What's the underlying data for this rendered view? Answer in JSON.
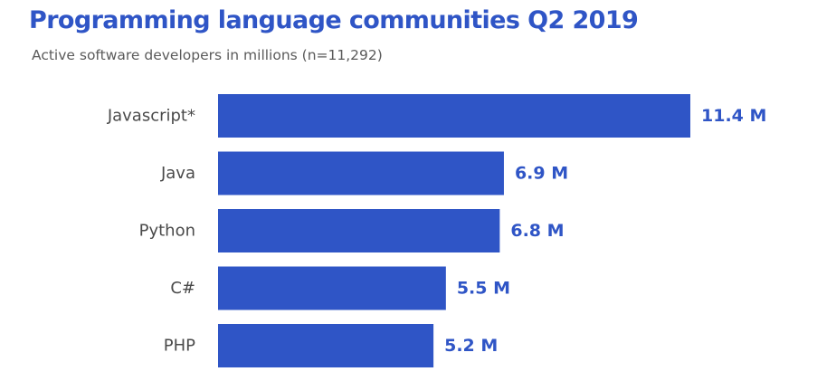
{
  "chart_data": {
    "type": "bar",
    "orientation": "horizontal",
    "title": "Programming language communities Q2 2019",
    "subtitle": "Active software developers in millions (n=11,292)",
    "categories": [
      "Javascript*",
      "Java",
      "Python",
      "C#",
      "PHP"
    ],
    "values": [
      11.4,
      6.9,
      6.8,
      5.5,
      5.2
    ],
    "value_labels": [
      "11.4 M",
      "6.9 M",
      "6.8 M",
      "5.5 M",
      "5.2 M"
    ],
    "xlabel": "",
    "ylabel": "",
    "xlim": [
      0,
      11.4
    ],
    "grid": false,
    "legend": "none",
    "colors": {
      "bar": "#2f55c6",
      "title": "#2f55c6",
      "value_label": "#2f55c6",
      "category_label": "#4a4a4a",
      "subtitle": "#5b5b5b"
    }
  }
}
